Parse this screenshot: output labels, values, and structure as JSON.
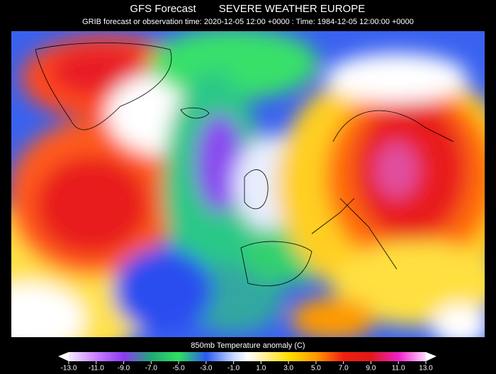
{
  "header": {
    "title": "GFS Forecast",
    "subtitle": "SEVERE WEATHER EUROPE",
    "time_line": "GRIB forecast or observation time: 2020-12-05 12:00 +0000 : Time: 1984-12-05 12:00:00 +0000"
  },
  "colorbar": {
    "label": "850mb Temperature anomaly (C)",
    "lim": [
      -13,
      13
    ],
    "ticks": [
      {
        "value": -13,
        "label": "-13.0"
      },
      {
        "value": -11,
        "label": "-11.0"
      },
      {
        "value": -9,
        "label": "-9.0"
      },
      {
        "value": -7,
        "label": "-7.0"
      },
      {
        "value": -5,
        "label": "-5.0"
      },
      {
        "value": -3,
        "label": "-3.0"
      },
      {
        "value": -1,
        "label": "-1.0"
      },
      {
        "value": 1,
        "label": "1.0"
      },
      {
        "value": 3,
        "label": "3.0"
      },
      {
        "value": 5,
        "label": "5.0"
      },
      {
        "value": 7,
        "label": "7.0"
      },
      {
        "value": 9,
        "label": "9.0"
      },
      {
        "value": 11,
        "label": "11.0"
      },
      {
        "value": 13,
        "label": "13.0"
      }
    ]
  }
}
